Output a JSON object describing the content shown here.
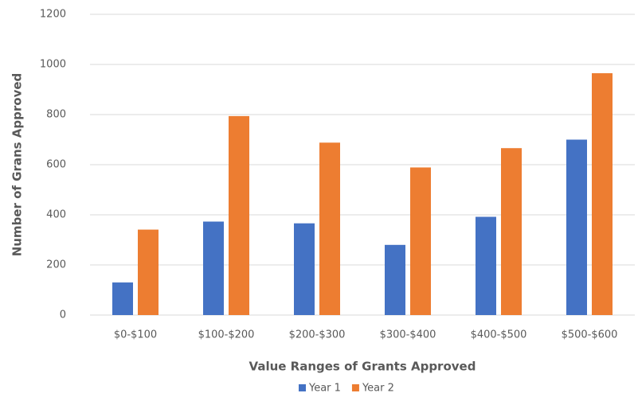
{
  "chart_data": {
    "type": "bar",
    "x_label": "Value Ranges of Grants Approved",
    "y_label": "Number of Grans Approved",
    "categories": [
      "$0-$100",
      "$100-$200",
      "$200-$300",
      "$300-$400",
      "$400-$500",
      "$500-$600"
    ],
    "series": [
      {
        "name": "Year 1",
        "color": "#4472c4",
        "values": [
          130,
          373,
          366,
          280,
          392,
          700
        ]
      },
      {
        "name": "Year 2",
        "color": "#ed7d31",
        "values": [
          341,
          794,
          688,
          589,
          666,
          965
        ]
      }
    ],
    "ylim": [
      0,
      1200
    ],
    "yticks": [
      0,
      200,
      400,
      600,
      800,
      1000,
      1200
    ],
    "grid": true,
    "legend": "bottom"
  }
}
